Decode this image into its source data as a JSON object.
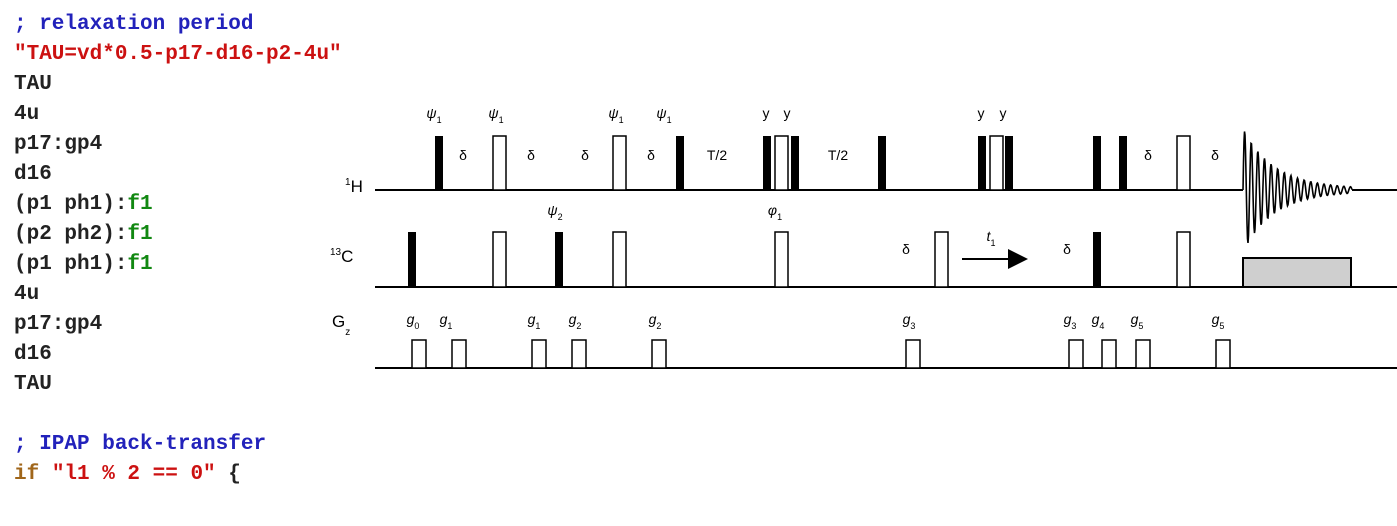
{
  "code": {
    "lines": [
      [
        "; relaxation period"
      ],
      [
        "\"TAU=vd*0.5-p17-d16-p2-4u\""
      ],
      [
        "TAU"
      ],
      [
        "4u"
      ],
      [
        "p17:gp4"
      ],
      [
        "d16"
      ],
      [
        "(p1 ph1):",
        "f1"
      ],
      [
        "(p2 ph2):",
        "f1"
      ],
      [
        "(p1 ph1):",
        "f1"
      ],
      [
        "4u"
      ],
      [
        "p17:gp4"
      ],
      [
        "d16"
      ],
      [
        "TAU"
      ],
      [
        "; IPAP back-transfer"
      ],
      [
        "if",
        " \"l1 % 2 == 0\"",
        " {"
      ]
    ]
  },
  "diagram": {
    "channels": [
      {
        "sup": "1",
        "name": "H"
      },
      {
        "sup": "13",
        "name": "C"
      },
      {
        "name": "G",
        "sub": "z"
      }
    ],
    "labels": [
      {
        "text": "ψ",
        "sub": "1"
      },
      {
        "text": "ψ",
        "sub": "1"
      },
      {
        "text": "ψ",
        "sub": "1"
      },
      {
        "text": "ψ",
        "sub": "1"
      },
      {
        "text": "y"
      },
      {
        "text": "y"
      },
      {
        "text": "y"
      },
      {
        "text": "y"
      },
      {
        "text": "δ"
      },
      {
        "text": "δ"
      },
      {
        "text": "δ"
      },
      {
        "text": "δ"
      },
      {
        "text": "T/2"
      },
      {
        "text": "T/2"
      },
      {
        "text": "δ"
      },
      {
        "text": "δ"
      },
      {
        "text": "ψ",
        "sub": "2"
      },
      {
        "text": "φ",
        "sub": "1"
      },
      {
        "text": "δ"
      },
      {
        "text": "t",
        "sub": "1"
      },
      {
        "text": "δ"
      },
      {
        "text": "g",
        "sub": "0"
      },
      {
        "text": "g",
        "sub": "1"
      },
      {
        "text": "g",
        "sub": "1"
      },
      {
        "text": "g",
        "sub": "2"
      },
      {
        "text": "g",
        "sub": "2"
      },
      {
        "text": "g",
        "sub": "3"
      },
      {
        "text": "g",
        "sub": "3"
      },
      {
        "text": "g",
        "sub": "4"
      },
      {
        "text": "g",
        "sub": "5"
      },
      {
        "text": "g",
        "sub": "5"
      }
    ]
  }
}
